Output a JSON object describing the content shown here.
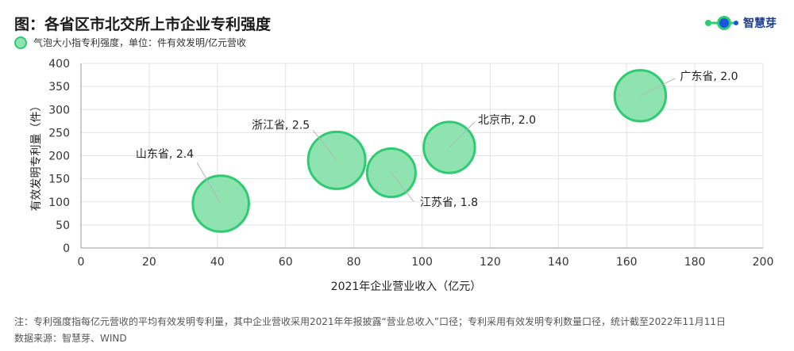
{
  "title": "图：各省区市北交所上市企业专利强度",
  "legend_label": "气泡大小指专利强度，单位：件有效发明/亿元营收",
  "logo": {
    "name": "智慧芽"
  },
  "colors": {
    "bubble_fill": "#8fe3b1",
    "bubble_stroke": "#2ecc71",
    "axis": "#999999",
    "grid": "#e3e3e3",
    "logo_blue": "#1a56db",
    "logo_green": "#2ecc71"
  },
  "chart_data": {
    "type": "scatter",
    "xlabel": "2021年企业营业收入（亿元）",
    "ylabel": "有效发明专利量（件）",
    "xlim": [
      0,
      200
    ],
    "ylim": [
      0,
      400
    ],
    "xticks": [
      0,
      20,
      40,
      60,
      80,
      100,
      120,
      140,
      160,
      180,
      200
    ],
    "yticks": [
      0,
      50,
      100,
      150,
      200,
      250,
      300,
      350,
      400
    ],
    "grid": true,
    "size_meaning": "专利强度",
    "points": [
      {
        "label": "山东省, 2.4",
        "x": 41,
        "y": 96,
        "size": 2.4
      },
      {
        "label": "浙江省, 2.5",
        "x": 75,
        "y": 190,
        "size": 2.5
      },
      {
        "label": "江苏省, 1.8",
        "x": 91,
        "y": 163,
        "size": 1.8
      },
      {
        "label": "北京市, 2.0",
        "x": 108,
        "y": 218,
        "size": 2.0
      },
      {
        "label": "广东省, 2.0",
        "x": 164,
        "y": 330,
        "size": 2.0
      }
    ]
  },
  "note": "注：专利强度指每亿元营收的平均有效发明专利量，其中企业营收采用2021年年报披露“营业总收入”口径；专利采用有效发明专利数量口径，统计截至2022年11月11日",
  "source": "数据来源：智慧芽、WIND"
}
